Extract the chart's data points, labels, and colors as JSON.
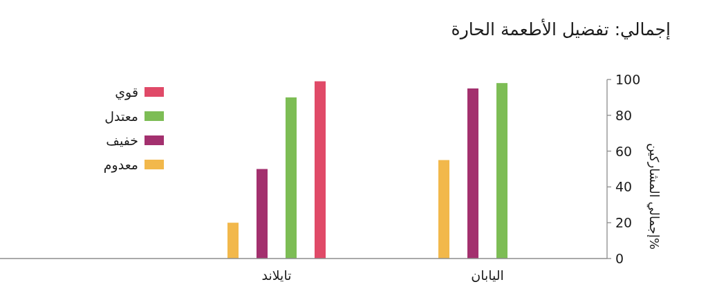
{
  "chart_data": {
    "type": "bar",
    "title": "إجمالي: تفضيل الأطعمة الحارة",
    "ylabel": "%إجمالي المشاركين",
    "categories": [
      "تايلاند",
      "اليابان"
    ],
    "series": [
      {
        "name": "معدوم",
        "color": "#f2b84b",
        "values": [
          20,
          55
        ]
      },
      {
        "name": "خفيف",
        "color": "#a3306e",
        "values": [
          50,
          95
        ]
      },
      {
        "name": "معتدل",
        "color": "#7dbd55",
        "values": [
          90,
          98
        ]
      },
      {
        "name": "قوي",
        "color": "#e04a68",
        "values": [
          99,
          null
        ]
      }
    ],
    "ylim": [
      0,
      100
    ],
    "yticks": [
      0,
      20,
      40,
      60,
      80,
      100
    ],
    "legend": "top left"
  }
}
